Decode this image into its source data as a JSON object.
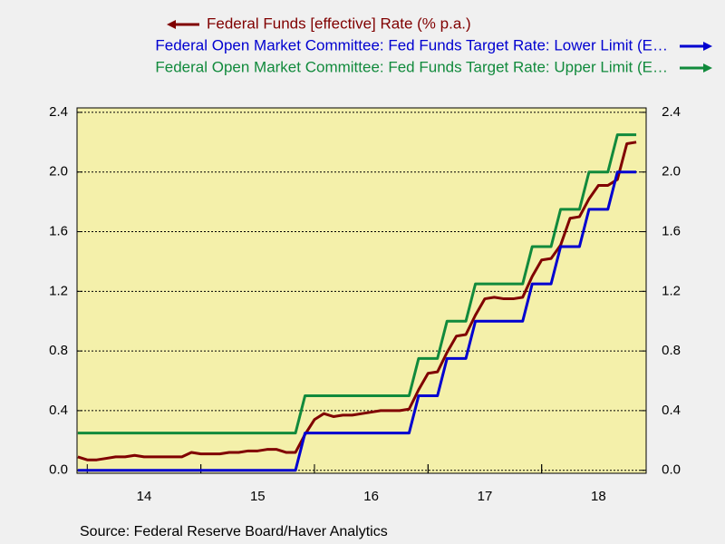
{
  "chart_data": {
    "type": "line",
    "source": "Source:  Federal Reserve Board/Haver Analytics",
    "x": [
      2013.917,
      2014.0,
      2014.083,
      2014.167,
      2014.25,
      2014.333,
      2014.417,
      2014.5,
      2014.583,
      2014.667,
      2014.75,
      2014.833,
      2014.917,
      2015.0,
      2015.083,
      2015.167,
      2015.25,
      2015.333,
      2015.417,
      2015.5,
      2015.583,
      2015.667,
      2015.75,
      2015.833,
      2015.917,
      2016.0,
      2016.083,
      2016.167,
      2016.25,
      2016.333,
      2016.417,
      2016.5,
      2016.583,
      2016.667,
      2016.75,
      2016.833,
      2016.917,
      2017.0,
      2017.083,
      2017.167,
      2017.25,
      2017.333,
      2017.417,
      2017.5,
      2017.583,
      2017.667,
      2017.75,
      2017.833,
      2017.917,
      2018.0,
      2018.083,
      2018.167,
      2018.25,
      2018.333,
      2018.417,
      2018.5,
      2018.583,
      2018.667,
      2018.75,
      2018.833
    ],
    "series": [
      {
        "name": "Federal Funds [effective] Rate (% p.a.)",
        "color": "#800000",
        "axis": "y",
        "values": [
          0.09,
          0.07,
          0.07,
          0.08,
          0.09,
          0.09,
          0.1,
          0.09,
          0.09,
          0.09,
          0.09,
          0.09,
          0.12,
          0.11,
          0.11,
          0.11,
          0.12,
          0.12,
          0.13,
          0.13,
          0.14,
          0.14,
          0.12,
          0.12,
          0.24,
          0.34,
          0.38,
          0.36,
          0.37,
          0.37,
          0.38,
          0.39,
          0.4,
          0.4,
          0.4,
          0.41,
          0.54,
          0.65,
          0.66,
          0.79,
          0.9,
          0.91,
          1.04,
          1.15,
          1.16,
          1.15,
          1.15,
          1.16,
          1.3,
          1.41,
          1.42,
          1.51,
          1.69,
          1.7,
          1.82,
          1.91,
          1.91,
          1.95,
          2.19,
          2.2
        ]
      },
      {
        "name": "Federal Open Market Committee: Fed Funds Target Rate: Lower Limit (E…",
        "color": "#0000d0",
        "axis": "y2",
        "values": [
          0,
          0,
          0,
          0,
          0,
          0,
          0,
          0,
          0,
          0,
          0,
          0,
          0,
          0,
          0,
          0,
          0,
          0,
          0,
          0,
          0,
          0,
          0,
          0,
          0.25,
          0.25,
          0.25,
          0.25,
          0.25,
          0.25,
          0.25,
          0.25,
          0.25,
          0.25,
          0.25,
          0.25,
          0.5,
          0.5,
          0.5,
          0.75,
          0.75,
          0.75,
          1.0,
          1.0,
          1.0,
          1.0,
          1.0,
          1.0,
          1.25,
          1.25,
          1.25,
          1.5,
          1.5,
          1.5,
          1.75,
          1.75,
          1.75,
          2.0,
          2.0,
          2.0
        ]
      },
      {
        "name": "Federal Open Market Committee: Fed Funds Target Rate: Upper Limit (E…",
        "color": "#118a3c",
        "axis": "y2",
        "values": [
          0.25,
          0.25,
          0.25,
          0.25,
          0.25,
          0.25,
          0.25,
          0.25,
          0.25,
          0.25,
          0.25,
          0.25,
          0.25,
          0.25,
          0.25,
          0.25,
          0.25,
          0.25,
          0.25,
          0.25,
          0.25,
          0.25,
          0.25,
          0.25,
          0.5,
          0.5,
          0.5,
          0.5,
          0.5,
          0.5,
          0.5,
          0.5,
          0.5,
          0.5,
          0.5,
          0.5,
          0.75,
          0.75,
          0.75,
          1.0,
          1.0,
          1.0,
          1.25,
          1.25,
          1.25,
          1.25,
          1.25,
          1.25,
          1.5,
          1.5,
          1.5,
          1.75,
          1.75,
          1.75,
          2.0,
          2.0,
          2.0,
          2.25,
          2.25,
          2.25
        ]
      }
    ],
    "xlim": [
      2013.91,
      2018.92
    ],
    "xticks": [
      {
        "value": 2014.5,
        "label": "14"
      },
      {
        "value": 2015.5,
        "label": "15"
      },
      {
        "value": 2016.5,
        "label": "16"
      },
      {
        "value": 2017.5,
        "label": "17"
      },
      {
        "value": 2018.5,
        "label": "18"
      }
    ],
    "ylim": [
      -0.02,
      2.43
    ],
    "yticks": [
      {
        "value": 0,
        "label": "0.0"
      },
      0.4,
      0.8,
      1.2,
      1.6,
      {
        "value": 2,
        "label": "2.0"
      },
      2.4
    ],
    "y2lim": [
      -0.02,
      2.43
    ],
    "y2ticks": [
      {
        "value": 0,
        "label": "0.0"
      },
      0.4,
      0.8,
      1.2,
      1.6,
      {
        "value": 2,
        "label": "2.0"
      },
      2.4
    ],
    "grid": true,
    "plot_color": "#f4f0aa"
  }
}
